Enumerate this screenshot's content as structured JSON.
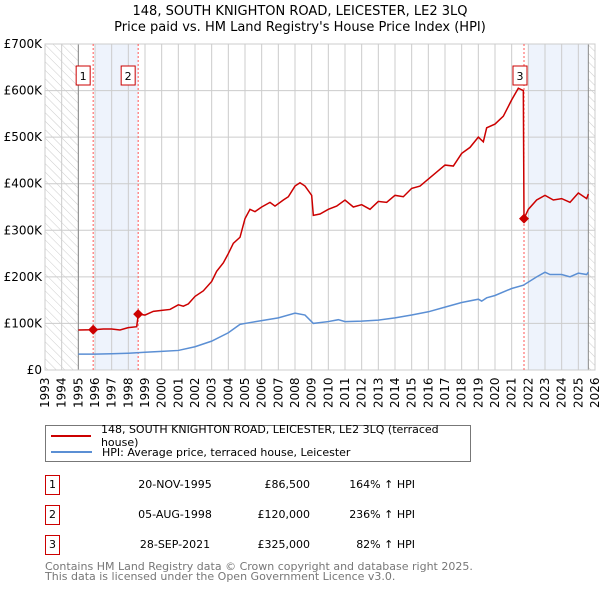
{
  "chart_data": {
    "type": "line",
    "title": "148, SOUTH KNIGHTON ROAD, LEICESTER, LE2 3LQ",
    "subtitle": "Price paid vs. HM Land Registry's House Price Index (HPI)",
    "xlim": [
      1993,
      2026
    ],
    "ylim": [
      0,
      700000
    ],
    "x_ticks": [
      "1993",
      "1994",
      "1995",
      "1996",
      "1997",
      "1998",
      "1999",
      "2000",
      "2001",
      "2002",
      "2003",
      "2004",
      "2005",
      "2006",
      "2007",
      "2008",
      "2009",
      "2010",
      "2011",
      "2012",
      "2013",
      "2014",
      "2015",
      "2016",
      "2017",
      "2018",
      "2019",
      "2020",
      "2021",
      "2022",
      "2023",
      "2024",
      "2025",
      "2026"
    ],
    "y_ticks": [
      {
        "v": 0,
        "label": "£0"
      },
      {
        "v": 100000,
        "label": "£100K"
      },
      {
        "v": 200000,
        "label": "£200K"
      },
      {
        "v": 300000,
        "label": "£300K"
      },
      {
        "v": 400000,
        "label": "£400K"
      },
      {
        "v": 500000,
        "label": "£500K"
      },
      {
        "v": 600000,
        "label": "£600K"
      },
      {
        "v": 700000,
        "label": "£700K"
      }
    ],
    "grid": true,
    "series": [
      {
        "name": "148, SOUTH KNIGHTON ROAD, LEICESTER, LE2 3LQ (terraced house)",
        "color": "#cc0000",
        "x": [
          1995.0,
          1995.9,
          1996.5,
          1997,
          1997.5,
          1998,
          1998.5,
          1998.6,
          1999,
          1999.5,
          2000,
          2000.5,
          2001,
          2001.3,
          2001.6,
          2002,
          2002.5,
          2003,
          2003.3,
          2003.7,
          2004,
          2004.3,
          2004.7,
          2005,
          2005.3,
          2005.6,
          2006,
          2006.5,
          2006.8,
          2007.3,
          2007.6,
          2008,
          2008.3,
          2008.6,
          2009,
          2009.1,
          2009.5,
          2010,
          2010.5,
          2011,
          2011.5,
          2012,
          2012.5,
          2013,
          2013.5,
          2014,
          2014.5,
          2015,
          2015.5,
          2016,
          2016.5,
          2017,
          2017.5,
          2018,
          2018.5,
          2019,
          2019.3,
          2019.5,
          2020,
          2020.5,
          2021,
          2021.4,
          2021.7,
          2021.74,
          2022,
          2022.5,
          2023,
          2023.5,
          2024,
          2024.5,
          2025,
          2025.5,
          2025.6
        ],
        "y": [
          86000,
          86500,
          88000,
          88000,
          86000,
          91000,
          93000,
          120000,
          118000,
          126000,
          128000,
          130000,
          140000,
          137000,
          142000,
          158000,
          170000,
          190000,
          212000,
          230000,
          250000,
          272000,
          285000,
          325000,
          345000,
          340000,
          350000,
          360000,
          352000,
          365000,
          372000,
          395000,
          402000,
          395000,
          375000,
          332000,
          335000,
          345000,
          352000,
          365000,
          350000,
          355000,
          345000,
          362000,
          360000,
          375000,
          372000,
          390000,
          395000,
          410000,
          425000,
          440000,
          438000,
          465000,
          478000,
          500000,
          490000,
          520000,
          528000,
          545000,
          580000,
          605000,
          600000,
          325000,
          345000,
          365000,
          375000,
          365000,
          368000,
          360000,
          380000,
          368000,
          378000
        ]
      },
      {
        "name": "HPI: Average price, terraced house, Leicester",
        "color": "#5b8fd4",
        "x": [
          1995,
          1996,
          1997,
          1998,
          1999,
          2000,
          2001,
          2002,
          2003,
          2004,
          2004.7,
          2005,
          2006,
          2007,
          2008,
          2008.6,
          2009.1,
          2010,
          2010.6,
          2011,
          2012,
          2013,
          2014,
          2015,
          2016,
          2017,
          2018,
          2019,
          2019.2,
          2019.5,
          2020,
          2021,
          2021.7,
          2022.5,
          2023,
          2023.3,
          2024,
          2024.5,
          2025,
          2025.5,
          2025.6
        ],
        "y": [
          34000,
          34000,
          35000,
          36000,
          38000,
          40000,
          42000,
          50000,
          62000,
          80000,
          98000,
          100000,
          106000,
          112000,
          122000,
          118000,
          100000,
          104000,
          108000,
          104000,
          105000,
          107000,
          112000,
          118000,
          125000,
          135000,
          145000,
          152000,
          148000,
          155000,
          160000,
          175000,
          182000,
          200000,
          210000,
          205000,
          205000,
          200000,
          208000,
          205000,
          210000
        ]
      }
    ],
    "sales": [
      {
        "label": "1",
        "date": "20-NOV-1995",
        "x": 1995.89,
        "price": 86500,
        "price_text": "£86,500",
        "hpi": "164% ↑ HPI"
      },
      {
        "label": "2",
        "date": "05-AUG-1998",
        "x": 1998.59,
        "price": 120000,
        "price_text": "£120,000",
        "hpi": "236% ↑ HPI"
      },
      {
        "label": "3",
        "date": "28-SEP-2021",
        "x": 2021.74,
        "price": 325000,
        "price_text": "£325,000",
        "hpi": "82% ↑ HPI"
      }
    ],
    "legend_position": "below"
  },
  "footer": {
    "line1": "Contains HM Land Registry data © Crown copyright and database right 2025.",
    "line2": "This data is licensed under the Open Government Licence v3.0."
  }
}
